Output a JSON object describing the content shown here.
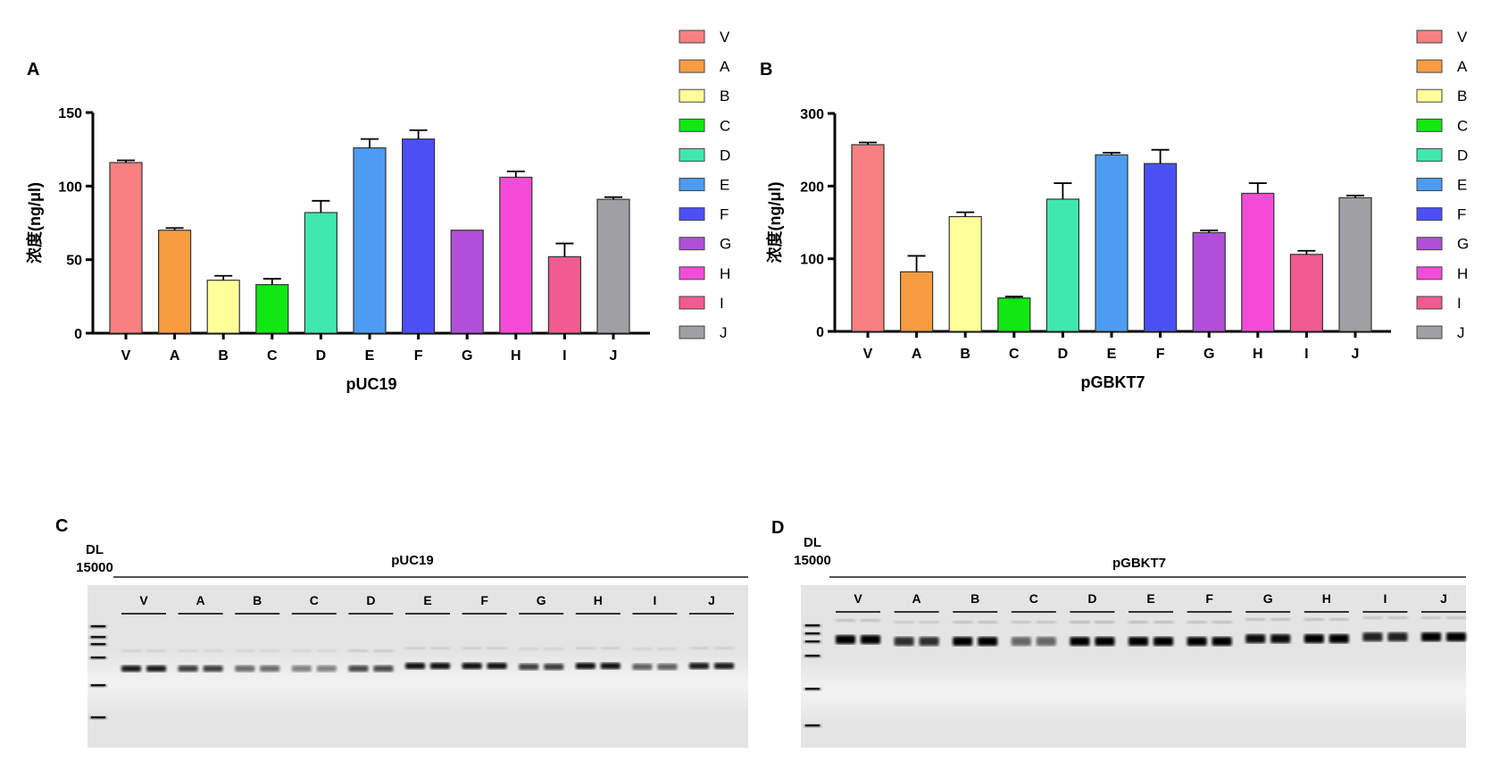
{
  "colors": {
    "V": "#f88080",
    "A": "#f89c42",
    "B": "#ffff99",
    "C": "#11e811",
    "D": "#40e8b0",
    "E": "#4c9cf4",
    "F": "#4c50f4",
    "G": "#b050d8",
    "H": "#f44cd8",
    "I": "#f05c90",
    "J": "#a0a0a4"
  },
  "chart_data": [
    {
      "panel": "A",
      "type": "bar",
      "categories": [
        "V",
        "A",
        "B",
        "C",
        "D",
        "E",
        "F",
        "G",
        "H",
        "I",
        "J"
      ],
      "values": [
        116,
        70,
        36,
        33,
        82,
        126,
        132,
        70,
        106,
        52,
        91
      ],
      "errors": [
        1.5,
        1.5,
        3,
        4,
        8,
        6,
        6,
        0,
        4,
        9,
        1.5
      ],
      "xlabel": "pUC19",
      "ylabel": "浓度(ng/μl)",
      "ylim": [
        0,
        150
      ],
      "yticks": [
        0,
        50,
        100,
        150
      ],
      "grid": false,
      "legend": {
        "position": "right",
        "entries": [
          "V",
          "A",
          "B",
          "C",
          "D",
          "E",
          "F",
          "G",
          "H",
          "I",
          "J"
        ]
      }
    },
    {
      "panel": "B",
      "type": "bar",
      "categories": [
        "V",
        "A",
        "B",
        "C",
        "D",
        "E",
        "F",
        "G",
        "H",
        "I",
        "J"
      ],
      "values": [
        257,
        82,
        158,
        46,
        182,
        243,
        231,
        136,
        190,
        106,
        184
      ],
      "errors": [
        3,
        22,
        6,
        2,
        22,
        3,
        19,
        3,
        14,
        5,
        3
      ],
      "xlabel": "pGBKT7",
      "ylabel": "浓度(ng/μl)",
      "ylim": [
        0,
        300
      ],
      "yticks": [
        0,
        100,
        200,
        300
      ],
      "grid": false,
      "legend": {
        "position": "right",
        "entries": [
          "V",
          "A",
          "B",
          "C",
          "D",
          "E",
          "F",
          "G",
          "H",
          "I",
          "J"
        ]
      }
    }
  ],
  "gels": [
    {
      "panel": "C",
      "ladder_label": [
        "DL",
        "15000"
      ],
      "title": "pUC19",
      "groups": [
        "V",
        "A",
        "B",
        "C",
        "D",
        "E",
        "F",
        "G",
        "H",
        "I",
        "J"
      ]
    },
    {
      "panel": "D",
      "ladder_label": [
        "DL",
        "15000"
      ],
      "title": "pGBKT7",
      "groups": [
        "V",
        "A",
        "B",
        "C",
        "D",
        "E",
        "F",
        "G",
        "H",
        "I",
        "J"
      ]
    }
  ]
}
